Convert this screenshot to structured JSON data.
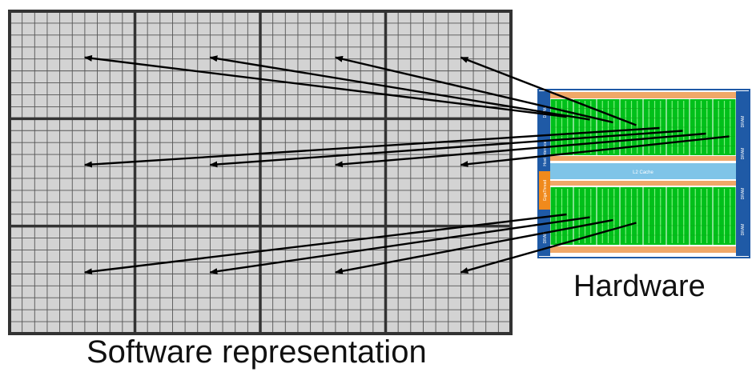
{
  "software": {
    "caption": "Software representation",
    "block_rows": 3,
    "block_cols": 4,
    "threads_per_block_x": 10,
    "threads_per_block_y": 9
  },
  "hardware": {
    "caption": "Hardware",
    "l2_label": "L2 Cache",
    "dram_label": "DRAM",
    "host_interface_label": "Host Interface",
    "giga_thread_label": "GigaThread",
    "sm_per_row": 8,
    "sm_rows": 2
  },
  "mappings": [
    {
      "block": [
        0,
        0
      ],
      "sm": [
        0,
        0
      ]
    },
    {
      "block": [
        0,
        1
      ],
      "sm": [
        0,
        1
      ]
    },
    {
      "block": [
        0,
        2
      ],
      "sm": [
        0,
        2
      ]
    },
    {
      "block": [
        0,
        3
      ],
      "sm": [
        0,
        3
      ]
    },
    {
      "block": [
        1,
        0
      ],
      "sm": [
        0,
        4
      ]
    },
    {
      "block": [
        1,
        1
      ],
      "sm": [
        0,
        5
      ]
    },
    {
      "block": [
        1,
        2
      ],
      "sm": [
        0,
        6
      ]
    },
    {
      "block": [
        1,
        3
      ],
      "sm": [
        0,
        7
      ]
    },
    {
      "block": [
        2,
        0
      ],
      "sm": [
        1,
        0
      ]
    },
    {
      "block": [
        2,
        1
      ],
      "sm": [
        1,
        1
      ]
    },
    {
      "block": [
        2,
        2
      ],
      "sm": [
        1,
        2
      ]
    },
    {
      "block": [
        2,
        3
      ],
      "sm": [
        1,
        3
      ]
    }
  ],
  "colors": {
    "grid_fill": "#d3d3d3",
    "grid_line": "#333333",
    "chip_border": "#1f5aa6",
    "sm_green": "#00c01a",
    "sm_stripe": "#7cf07c",
    "l2_blue": "#7fc4e8",
    "orange": "#f0a868",
    "arrow": "#000000"
  }
}
